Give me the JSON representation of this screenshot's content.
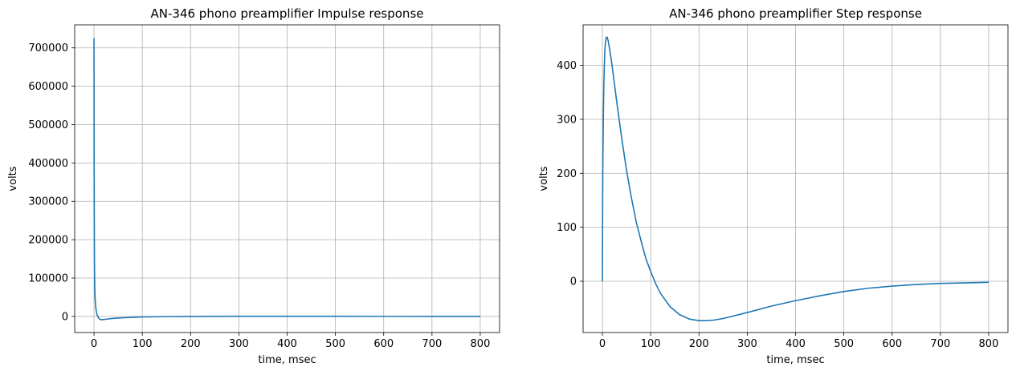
{
  "chart_data": [
    {
      "type": "line",
      "title": "AN-346 phono preamplifier Impulse response",
      "xlabel": "time, msec",
      "ylabel": "volts",
      "xlim": [
        -40,
        840
      ],
      "ylim": [
        -42000,
        760000
      ],
      "xticks": [
        0,
        100,
        200,
        300,
        400,
        500,
        600,
        700,
        800
      ],
      "yticks": [
        0,
        100000,
        200000,
        300000,
        400000,
        500000,
        600000,
        700000
      ],
      "grid": true,
      "line_color": "#1f77b4",
      "series": [
        {
          "x": [
            0,
            0.3,
            0.6,
            1,
            1.5,
            2,
            3,
            4,
            5,
            6,
            8,
            10,
            12,
            15,
            20,
            30,
            40,
            60,
            80,
            100,
            150,
            200,
            300,
            400,
            500,
            600,
            700,
            800
          ],
          "values": [
            725000,
            400000,
            240000,
            130000,
            80000,
            55000,
            32000,
            20000,
            12000,
            6000,
            0,
            -5000,
            -7500,
            -8500,
            -8000,
            -6500,
            -5000,
            -3500,
            -2500,
            -1500,
            -500,
            0,
            500,
            500,
            400,
            300,
            250,
            200
          ]
        }
      ]
    },
    {
      "type": "line",
      "title": "AN-346 phono preamplifier Step response",
      "xlabel": "time, msec",
      "ylabel": "volts",
      "xlim": [
        -40,
        840
      ],
      "ylim": [
        -95,
        475
      ],
      "xticks": [
        0,
        100,
        200,
        300,
        400,
        500,
        600,
        700,
        800
      ],
      "yticks": [
        0,
        100,
        200,
        300,
        400
      ],
      "grid": true,
      "line_color": "#1f77b4",
      "series": [
        {
          "x": [
            0,
            0.5,
            1,
            2,
            3,
            4,
            5,
            6,
            8,
            10,
            12,
            15,
            20,
            25,
            30,
            40,
            50,
            60,
            70,
            80,
            90,
            100,
            110,
            120,
            140,
            160,
            180,
            200,
            215,
            230,
            250,
            300,
            350,
            400,
            450,
            500,
            550,
            600,
            650,
            700,
            750,
            800
          ],
          "values": [
            0,
            150,
            230,
            310,
            365,
            400,
            425,
            440,
            452,
            452,
            445,
            430,
            400,
            365,
            330,
            265,
            205,
            155,
            110,
            75,
            42,
            18,
            -4,
            -22,
            -47,
            -62,
            -70,
            -73,
            -73,
            -72,
            -69,
            -58,
            -46,
            -36,
            -27,
            -19,
            -13,
            -9,
            -6,
            -4,
            -3,
            -2
          ]
        }
      ]
    }
  ]
}
